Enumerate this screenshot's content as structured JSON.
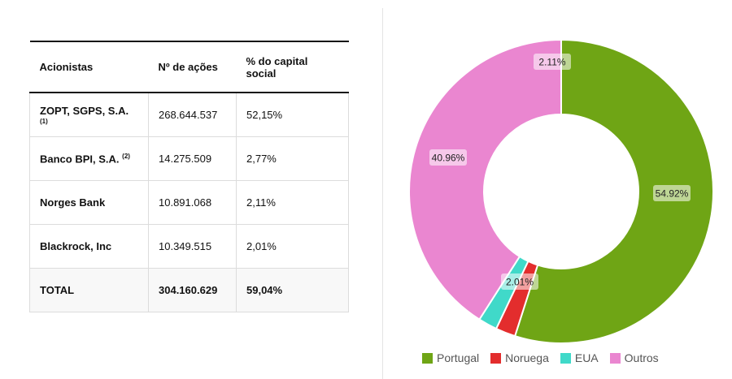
{
  "table": {
    "headers": [
      "Acionistas",
      "Nº de ações",
      "% do capital social"
    ],
    "rows": [
      {
        "name": "ZOPT, SGPS, S.A.",
        "note": "(1)",
        "shares": "268.644.537",
        "pct": "52,15%"
      },
      {
        "name": "Banco BPI, S.A.",
        "note": "(2)",
        "shares": "14.275.509",
        "pct": "2,77%"
      },
      {
        "name": "Norges Bank",
        "note": "",
        "shares": "10.891.068",
        "pct": "2,11%"
      },
      {
        "name": "Blackrock, Inc",
        "note": "",
        "shares": "10.349.515",
        "pct": "2,01%"
      }
    ],
    "total": {
      "name": "TOTAL",
      "shares": "304.160.629",
      "pct": "59,04%"
    }
  },
  "chart_data": {
    "type": "pie",
    "donut": true,
    "legend_position": "bottom",
    "categories": [
      "Portugal",
      "Noruega",
      "EUA",
      "Outros"
    ],
    "values": [
      54.92,
      2.11,
      2.01,
      40.96
    ],
    "data_labels": [
      "54.92%",
      "2.11%",
      "2.01%",
      "40.96%"
    ],
    "colors": [
      "#6fa515",
      "#e32d2d",
      "#40d9c9",
      "#ea86d0"
    ]
  }
}
